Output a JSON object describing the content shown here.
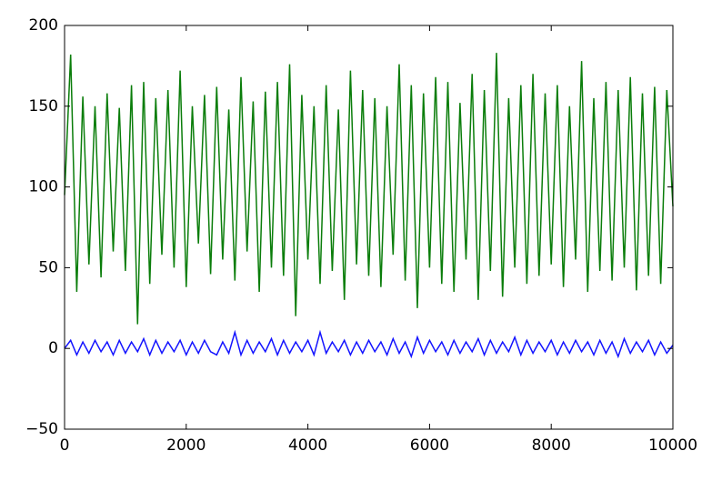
{
  "chart_data": {
    "type": "line",
    "x": [
      0,
      100,
      200,
      300,
      400,
      500,
      600,
      700,
      800,
      900,
      1000,
      1100,
      1200,
      1300,
      1400,
      1500,
      1600,
      1700,
      1800,
      1900,
      2000,
      2100,
      2200,
      2300,
      2400,
      2500,
      2600,
      2700,
      2800,
      2900,
      3000,
      3100,
      3200,
      3300,
      3400,
      3500,
      3600,
      3700,
      3800,
      3900,
      4000,
      4100,
      4200,
      4300,
      4400,
      4500,
      4600,
      4700,
      4800,
      4900,
      5000,
      5100,
      5200,
      5300,
      5400,
      5500,
      5600,
      5700,
      5800,
      5900,
      6000,
      6100,
      6200,
      6300,
      6400,
      6500,
      6600,
      6700,
      6800,
      6900,
      7000,
      7100,
      7200,
      7300,
      7400,
      7500,
      7600,
      7700,
      7800,
      7900,
      8000,
      8100,
      8200,
      8300,
      8400,
      8500,
      8600,
      8700,
      8800,
      8900,
      9000,
      9100,
      9200,
      9300,
      9400,
      9500,
      9600,
      9700,
      9800,
      9900,
      10000
    ],
    "series": [
      {
        "color": "#0a7d0a",
        "values": [
          95,
          182,
          35,
          156,
          52,
          150,
          44,
          158,
          60,
          149,
          48,
          163,
          15,
          165,
          40,
          155,
          58,
          160,
          50,
          172,
          38,
          150,
          65,
          157,
          46,
          162,
          55,
          148,
          42,
          168,
          60,
          153,
          35,
          159,
          50,
          165,
          45,
          176,
          20,
          157,
          55,
          150,
          40,
          163,
          48,
          148,
          30,
          172,
          52,
          160,
          45,
          155,
          38,
          150,
          58,
          176,
          42,
          163,
          25,
          158,
          50,
          168,
          40,
          165,
          35,
          152,
          55,
          170,
          30,
          160,
          48,
          183,
          32,
          155,
          50,
          163,
          40,
          170,
          45,
          158,
          52,
          163,
          38,
          150,
          55,
          178,
          35,
          155,
          48,
          165,
          42,
          160,
          50,
          168,
          36,
          158,
          45,
          162,
          40,
          160,
          88
        ]
      },
      {
        "color": "#1414ff",
        "values": [
          0,
          5,
          -4,
          4,
          -3,
          5,
          -2,
          4,
          -4,
          5,
          -3,
          4,
          -2,
          6,
          -4,
          5,
          -3,
          4,
          -2,
          5,
          -4,
          4,
          -3,
          5,
          -2,
          -4,
          4,
          -3,
          10,
          -4,
          5,
          -3,
          4,
          -2,
          6,
          -4,
          5,
          -3,
          4,
          -2,
          5,
          -4,
          10,
          -3,
          4,
          -2,
          5,
          -4,
          4,
          -3,
          5,
          -2,
          4,
          -4,
          6,
          -3,
          4,
          -5,
          7,
          -3,
          5,
          -2,
          4,
          -4,
          5,
          -3,
          4,
          -2,
          6,
          -4,
          5,
          -3,
          4,
          -2,
          7,
          -4,
          5,
          -3,
          4,
          -2,
          5,
          -4,
          4,
          -3,
          5,
          -2,
          4,
          -4,
          5,
          -3,
          4,
          -5,
          6,
          -3,
          4,
          -2,
          5,
          -4,
          4,
          -3,
          2
        ]
      }
    ],
    "xlim": [
      0,
      10000
    ],
    "xticks": [
      0,
      2000,
      4000,
      6000,
      8000,
      10000
    ],
    "ylim": [
      -50,
      200
    ],
    "yticks": [
      {
        "value": -50,
        "label": "−50"
      },
      0,
      50,
      100,
      150,
      200
    ]
  }
}
